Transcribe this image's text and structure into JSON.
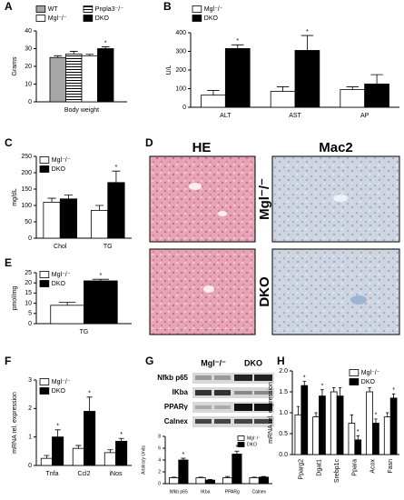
{
  "chart_data": [
    {
      "panel": "A",
      "type": "bar",
      "ylabel": "Grams",
      "categories": [
        "Body weight"
      ],
      "series": [
        {
          "name": "WT",
          "color": "#a6a6a6",
          "values": [
            25
          ],
          "errors": [
            1
          ]
        },
        {
          "name": "Pnpla3⁻/⁻",
          "color": "#ffffff",
          "pattern": "stripes",
          "values": [
            27
          ],
          "errors": [
            1.5
          ]
        },
        {
          "name": "Mgl⁻/⁻",
          "color": "#ffffff",
          "values": [
            26
          ],
          "errors": [
            0.8
          ]
        },
        {
          "name": "DKO",
          "color": "#000000",
          "values": [
            30
          ],
          "errors": [
            1
          ],
          "significance": [
            "*"
          ]
        }
      ],
      "ylim": [
        0,
        40
      ],
      "yticks": [
        0,
        10,
        20,
        30,
        40
      ]
    },
    {
      "panel": "B",
      "type": "bar",
      "ylabel": "U/L",
      "categories": [
        "ALT",
        "AST",
        "AP"
      ],
      "series": [
        {
          "name": "Mgl⁻/⁻",
          "color": "#ffffff",
          "values": [
            65,
            85,
            95
          ],
          "errors": [
            25,
            25,
            15
          ]
        },
        {
          "name": "DKO",
          "color": "#000000",
          "values": [
            315,
            305,
            125
          ],
          "errors": [
            20,
            80,
            50
          ],
          "significance": [
            "*",
            "*",
            null
          ]
        }
      ],
      "ylim": [
        0,
        400
      ],
      "yticks": [
        0,
        100,
        200,
        300,
        400
      ]
    },
    {
      "panel": "C",
      "type": "bar",
      "ylabel": "mg/dL",
      "categories": [
        "Chol",
        "TG"
      ],
      "series": [
        {
          "name": "Mgl⁻/⁻",
          "color": "#ffffff",
          "values": [
            110,
            85
          ],
          "errors": [
            12,
            15
          ]
        },
        {
          "name": "DKO",
          "color": "#000000",
          "values": [
            120,
            170
          ],
          "errors": [
            12,
            35
          ],
          "significance": [
            null,
            "*"
          ]
        }
      ],
      "ylim": [
        0,
        250
      ],
      "yticks": [
        0,
        50,
        100,
        150,
        200,
        250
      ]
    },
    {
      "panel": "E",
      "type": "bar",
      "ylabel": "pmol/mg",
      "categories": [
        "TG"
      ],
      "series": [
        {
          "name": "Mgl⁻/⁻",
          "color": "#ffffff",
          "values": [
            9
          ],
          "errors": [
            1.5
          ]
        },
        {
          "name": "DKO",
          "color": "#000000",
          "values": [
            21
          ],
          "errors": [
            0.8
          ],
          "significance": [
            "*"
          ]
        }
      ],
      "ylim": [
        0,
        25
      ],
      "yticks": [
        0,
        5,
        10,
        15,
        20,
        25
      ]
    },
    {
      "panel": "F",
      "type": "bar",
      "ylabel": "mRNA rel. expression",
      "categories": [
        "Tnfa",
        "Ccl2",
        "iNos"
      ],
      "series": [
        {
          "name": "Mgl⁻/⁻",
          "color": "#ffffff",
          "values": [
            0.25,
            0.6,
            0.45
          ],
          "errors": [
            0.1,
            0.1,
            0.1
          ]
        },
        {
          "name": "DKO",
          "color": "#000000",
          "values": [
            1.0,
            1.9,
            0.85
          ],
          "errors": [
            0.25,
            0.5,
            0.1
          ],
          "significance": [
            "*",
            "*",
            "*"
          ]
        }
      ],
      "ylim": [
        0,
        3
      ],
      "yticks": [
        0,
        1,
        2,
        3
      ]
    },
    {
      "panel": "G",
      "type": "bar",
      "ylabel": "Arbitrary Units",
      "categories": [
        "Nfkb p65",
        "IKba",
        "PPARg",
        "Calnex"
      ],
      "group_labels": [
        "Mgl⁻/⁻",
        "DKO"
      ],
      "blot_labels": [
        "Nfkb p65",
        "IKba",
        "PPARγ",
        "Calnex"
      ],
      "series": [
        {
          "name": "Mgl⁻/⁻",
          "color": "#ffffff",
          "values": [
            1,
            1,
            1,
            1
          ],
          "errors": [
            0.1,
            0.1,
            0.2,
            0.1
          ]
        },
        {
          "name": "DKO",
          "color": "#000000",
          "values": [
            4,
            0.6,
            5,
            1.1
          ],
          "errors": [
            0.3,
            0.1,
            0.5,
            0.1
          ],
          "significance": [
            "*",
            null,
            "*",
            null
          ]
        }
      ],
      "ylim": [
        0,
        8
      ],
      "yticks": [
        0,
        2,
        4,
        6,
        8
      ]
    },
    {
      "panel": "H",
      "type": "bar",
      "ylabel": "mRNA rel. expression",
      "categories": [
        "Pparg2",
        "Dgat1",
        "Srebp1c",
        "Ppara",
        "Acox",
        "Fasn"
      ],
      "series": [
        {
          "name": "Mgl⁻/⁻",
          "color": "#ffffff",
          "values": [
            0.95,
            0.9,
            1.5,
            0.75,
            1.5,
            0.9
          ],
          "errors": [
            0.2,
            0.1,
            0.1,
            0.2,
            0.1,
            0.1
          ]
        },
        {
          "name": "DKO",
          "color": "#000000",
          "values": [
            1.65,
            1.4,
            1.4,
            0.35,
            0.75,
            1.35
          ],
          "errors": [
            0.1,
            0.15,
            0.2,
            0.1,
            0.1,
            0.1
          ],
          "significance": [
            "*",
            "*",
            null,
            "*",
            "*",
            "*"
          ]
        }
      ],
      "ylim": [
        0,
        2
      ],
      "yticks": [
        {
          "value": 0,
          "label": "0.0"
        },
        0.5,
        {
          "value": 1,
          "label": "1.0"
        },
        1.5,
        {
          "value": 2,
          "label": "2.0"
        }
      ]
    }
  ],
  "panel_d": {
    "panel": "D",
    "columns": [
      "HE",
      "Mac2"
    ],
    "rows": [
      "Mgl⁻/⁻",
      "DKO"
    ]
  }
}
